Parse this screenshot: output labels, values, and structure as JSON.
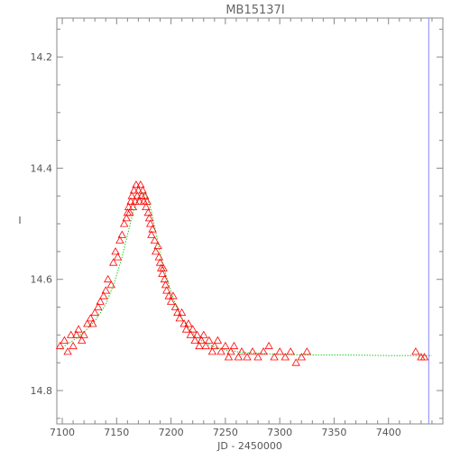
{
  "chart_data": {
    "type": "scatter",
    "title": "MB15137I",
    "xlabel": "JD - 2450000",
    "ylabel": "I",
    "xlim": [
      7095,
      7450
    ],
    "ylim": [
      14.86,
      14.13
    ],
    "y_inverted": true,
    "x_ticks": [
      7100,
      7150,
      7200,
      7250,
      7300,
      7350,
      7400
    ],
    "x_tick_labels": [
      "7100",
      "7150",
      "7200",
      "7250",
      "7300",
      "7350",
      "7400"
    ],
    "y_ticks": [
      14.2,
      14.4,
      14.6,
      14.8
    ],
    "y_tick_labels": [
      "14.2",
      "14.4",
      "14.6",
      "14.8"
    ],
    "reference_line_x": 7437,
    "colors": {
      "points": "#ff0000",
      "model": "#22cc22",
      "reference": "#8888ff",
      "axes": "#888888"
    },
    "series": [
      {
        "kind": "observations",
        "marker": "open-triangle",
        "x": [
          7098,
          7102,
          7105,
          7108,
          7110,
          7113,
          7115,
          7118,
          7120,
          7123,
          7126,
          7128,
          7130,
          7133,
          7135,
          7138,
          7140,
          7142,
          7145,
          7147,
          7149,
          7151,
          7153,
          7155,
          7157,
          7159,
          7160,
          7161,
          7162,
          7163,
          7164,
          7165,
          7166,
          7167,
          7168,
          7169,
          7170,
          7171,
          7172,
          7173,
          7174,
          7175,
          7176,
          7177,
          7178,
          7179,
          7180,
          7181,
          7182,
          7183,
          7185,
          7186,
          7188,
          7189,
          7190,
          7191,
          7192,
          7193,
          7194,
          7195,
          7196,
          7198,
          7200,
          7202,
          7204,
          7206,
          7208,
          7210,
          7212,
          7214,
          7216,
          7218,
          7220,
          7222,
          7224,
          7226,
          7228,
          7230,
          7232,
          7235,
          7238,
          7240,
          7243,
          7246,
          7250,
          7253,
          7255,
          7258,
          7262,
          7265,
          7270,
          7275,
          7280,
          7285,
          7290,
          7295,
          7300,
          7305,
          7310,
          7315,
          7320,
          7325,
          7425,
          7430,
          7433
        ],
        "y": [
          14.72,
          14.71,
          14.73,
          14.7,
          14.72,
          14.7,
          14.69,
          14.71,
          14.7,
          14.68,
          14.67,
          14.68,
          14.66,
          14.65,
          14.64,
          14.63,
          14.62,
          14.6,
          14.61,
          14.57,
          14.55,
          14.56,
          14.53,
          14.52,
          14.5,
          14.49,
          14.48,
          14.47,
          14.48,
          14.46,
          14.45,
          14.47,
          14.44,
          14.46,
          14.43,
          14.45,
          14.44,
          14.46,
          14.43,
          14.45,
          14.44,
          14.46,
          14.45,
          14.47,
          14.46,
          14.48,
          14.49,
          14.5,
          14.52,
          14.51,
          14.53,
          14.55,
          14.54,
          14.56,
          14.57,
          14.58,
          14.59,
          14.58,
          14.6,
          14.61,
          14.62,
          14.63,
          14.64,
          14.63,
          14.65,
          14.66,
          14.67,
          14.66,
          14.68,
          14.69,
          14.68,
          14.7,
          14.69,
          14.71,
          14.7,
          14.72,
          14.71,
          14.7,
          14.72,
          14.71,
          14.73,
          14.72,
          14.71,
          14.73,
          14.72,
          14.74,
          14.73,
          14.72,
          14.74,
          14.73,
          14.74,
          14.73,
          14.74,
          14.73,
          14.72,
          14.74,
          14.73,
          14.74,
          14.73,
          14.75,
          14.74,
          14.73,
          14.73,
          14.74,
          14.74
        ]
      },
      {
        "kind": "model",
        "style": "dotted-line",
        "x": [
          7098,
          7110,
          7120,
          7130,
          7140,
          7148,
          7155,
          7160,
          7165,
          7170,
          7174,
          7178,
          7182,
          7186,
          7190,
          7195,
          7200,
          7205,
          7210,
          7215,
          7220,
          7225,
          7230,
          7240,
          7250,
          7260,
          7270,
          7280,
          7300,
          7330,
          7360,
          7400,
          7440
        ],
        "y": [
          14.725,
          14.71,
          14.695,
          14.675,
          14.645,
          14.605,
          14.56,
          14.52,
          14.48,
          14.452,
          14.443,
          14.452,
          14.478,
          14.515,
          14.553,
          14.59,
          14.622,
          14.65,
          14.67,
          14.685,
          14.697,
          14.706,
          14.713,
          14.722,
          14.727,
          14.73,
          14.732,
          14.733,
          14.735,
          14.736,
          14.736,
          14.737,
          14.737
        ]
      }
    ]
  }
}
